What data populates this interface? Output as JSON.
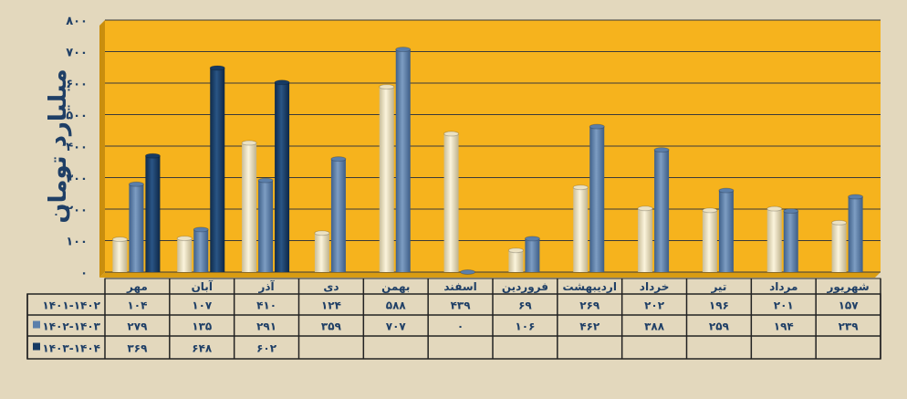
{
  "chart_data": {
    "type": "bar",
    "title": "",
    "ylabel": "میلیارد تومان",
    "xlabel": "",
    "ylim": [
      0,
      800
    ],
    "yticks": [
      0,
      100,
      200,
      300,
      400,
      500,
      600,
      700,
      800
    ],
    "grid": true,
    "legend": "table-below",
    "categories": [
      "مهر",
      "آبان",
      "آذر",
      "دی",
      "بهمن",
      "اسفند",
      "فروردین",
      "اردیبهشت",
      "خرداد",
      "تیر",
      "مرداد",
      "شهریور"
    ],
    "series": [
      {
        "name": "1401-1402",
        "color": "#ece2c3",
        "values": [
          104,
          107,
          410,
          124,
          588,
          439,
          69,
          269,
          202,
          196,
          201,
          157
        ]
      },
      {
        "name": "1402-1403",
        "color": "#5b7fab",
        "values": [
          279,
          135,
          291,
          359,
          707,
          0,
          106,
          462,
          388,
          259,
          194,
          239
        ]
      },
      {
        "name": "1403-1404",
        "color": "#163a63",
        "values": [
          369,
          648,
          602,
          null,
          null,
          null,
          null,
          null,
          null,
          null,
          null,
          null
        ]
      }
    ]
  },
  "colors": {
    "background": "#e3d8bd",
    "plot": "#f6b31d",
    "grid": "#3a3a3a",
    "text": "#1f3f66"
  }
}
